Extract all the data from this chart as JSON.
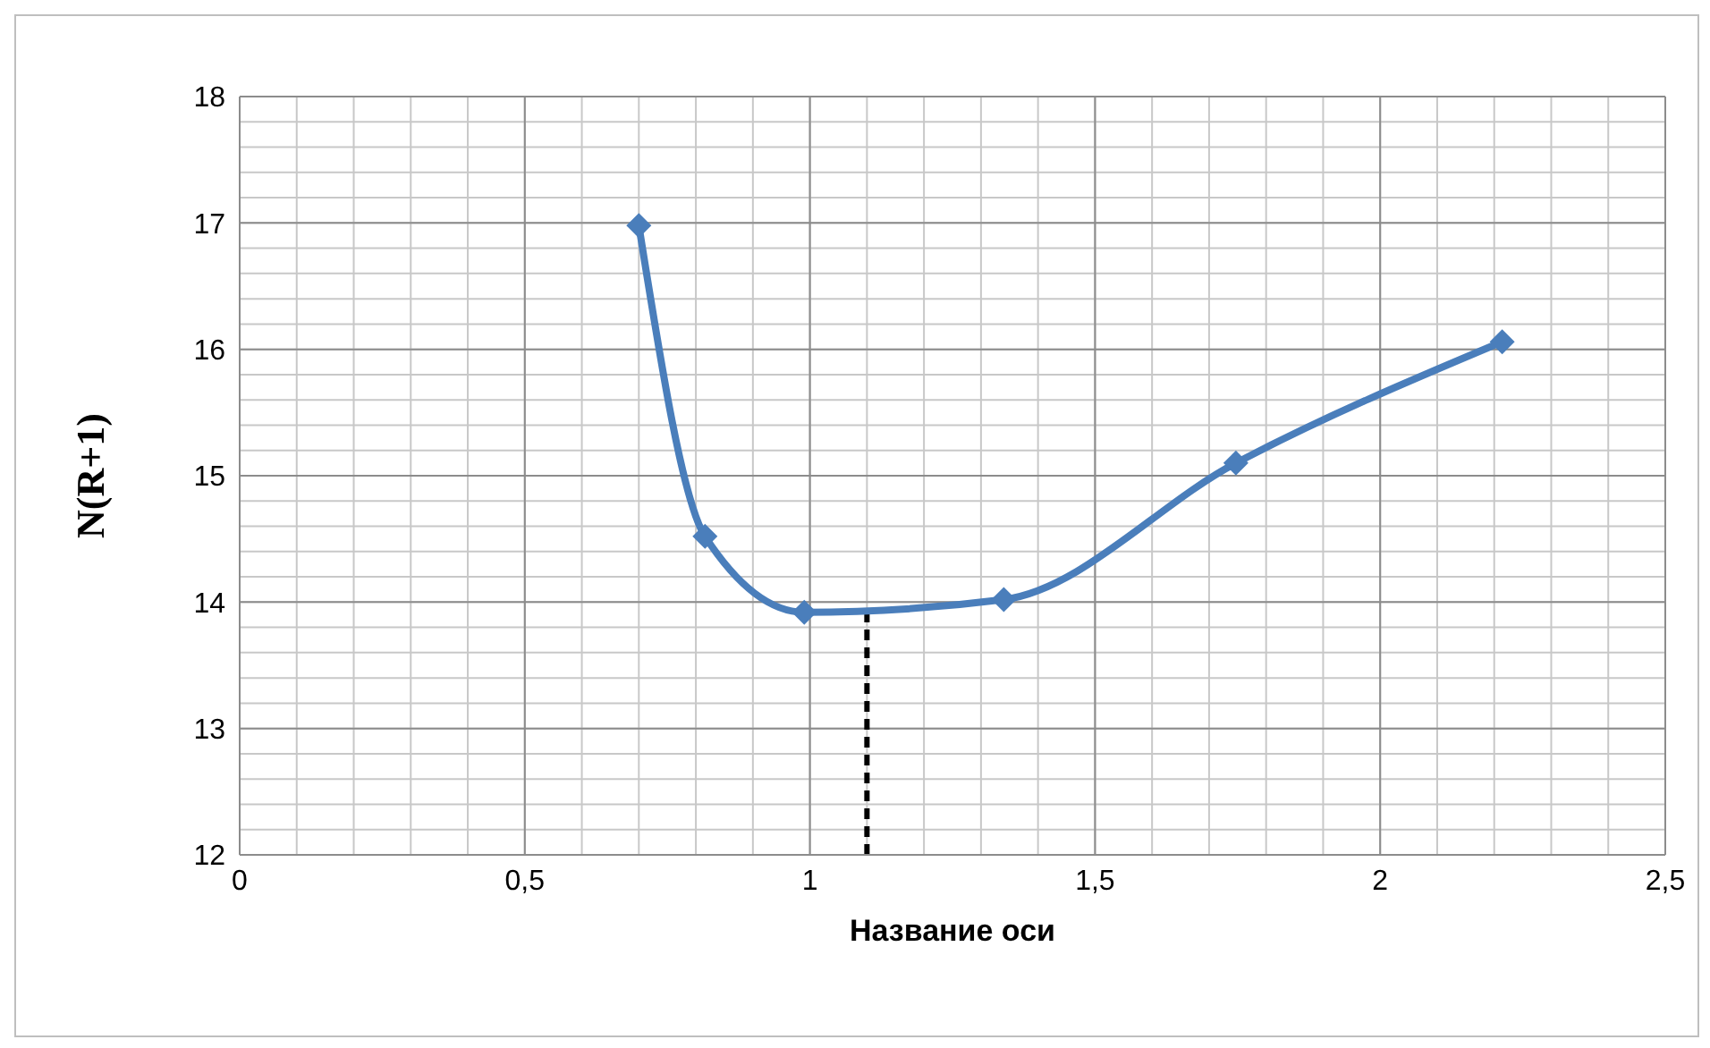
{
  "chart_data": {
    "type": "line",
    "xlabel": "Название оси",
    "ylabel": "N(R+1)",
    "x": [
      0.7,
      0.816,
      0.99,
      1.34,
      1.747,
      2.214
    ],
    "series": [
      {
        "color": "#4a7ebb",
        "values": [
          16.98,
          14.52,
          13.92,
          14.02,
          15.1,
          16.06
        ]
      }
    ],
    "xlim": [
      0,
      2.5
    ],
    "xticks": [
      0,
      {
        "value": 0.5,
        "label": "0,5"
      },
      1,
      {
        "value": 1.5,
        "label": "1,5"
      },
      2,
      {
        "value": 2.5,
        "label": "2,5"
      }
    ],
    "ylim": [
      12,
      18
    ],
    "yticks": [
      12,
      13,
      14,
      15,
      16,
      17,
      18
    ],
    "grid": true,
    "marker": "diamond",
    "line_style": "solid",
    "legend": false,
    "ref_lines": [
      {
        "axis": "x",
        "value": 1.1,
        "color": "#000000",
        "line_style": "dashed"
      }
    ]
  }
}
